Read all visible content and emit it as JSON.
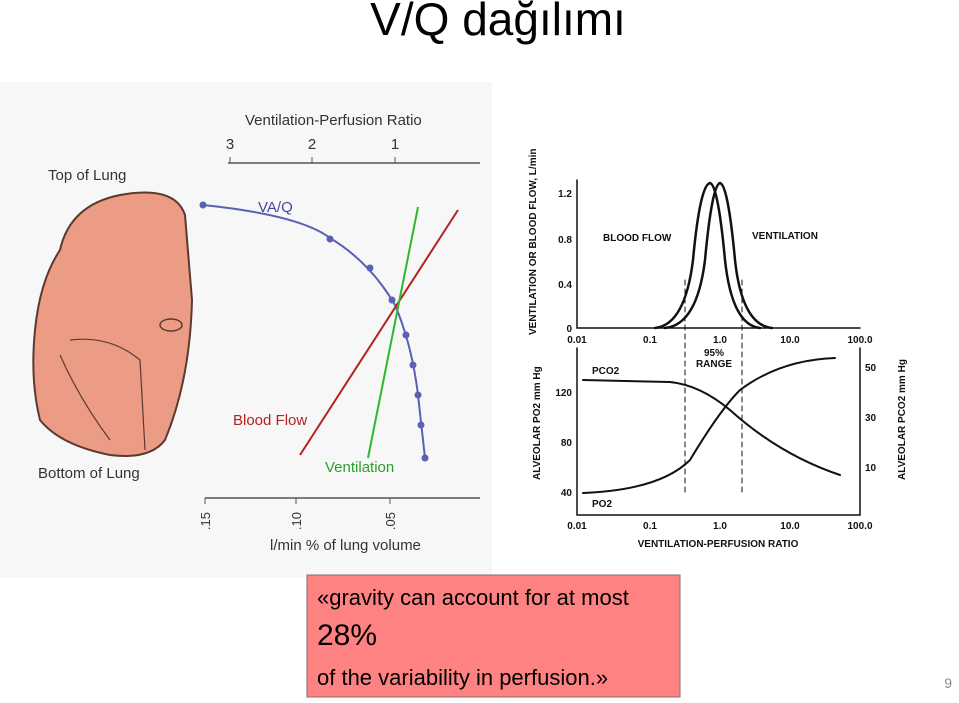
{
  "title": "V/Q dağılımı",
  "left_figure": {
    "top_axis_title": "Ventilation-Perfusion Ratio",
    "top_ticks": [
      "3",
      "2",
      "1"
    ],
    "top_label": "Top of Lung",
    "bottom_label": "Bottom of Lung",
    "curve_labels": [
      "VA/Q",
      "Blood Flow",
      "Ventilation"
    ],
    "bottom_ticks": [
      ".15",
      ".10",
      ".05"
    ],
    "bottom_axis_title": "l/min % of lung volume"
  },
  "right_figure": {
    "upper_y_title": "VENTILATION OR BLOOD FLOW, L/min",
    "upper_yticks": [
      "1.2",
      "0.8",
      "0.4",
      "0"
    ],
    "upper_xticks": [
      "0.01",
      "0.1",
      "1.0",
      "10.0",
      "100.0"
    ],
    "labels": [
      "BLOOD FLOW",
      "VENTILATION",
      "95%",
      "RANGE",
      "PCO2",
      "PO2"
    ],
    "lower_y_title": "ALVEOLAR PO2 mm Hg",
    "lower_yticks": [
      "120",
      "80",
      "40"
    ],
    "lower_y2_title": "ALVEOLAR PCO2 mm Hg",
    "lower_y2ticks": [
      "50",
      "30",
      "10"
    ],
    "lower_xticks": [
      "0.01",
      "0.1",
      "1.0",
      "10.0",
      "100.0"
    ],
    "x_title": "VENTILATION-PERFUSION RATIO"
  },
  "quote": {
    "line1": "«gravity can account for at most",
    "emphasis": "28%",
    "line2": "of the variability in perfusion.»"
  },
  "page_number": "9"
}
